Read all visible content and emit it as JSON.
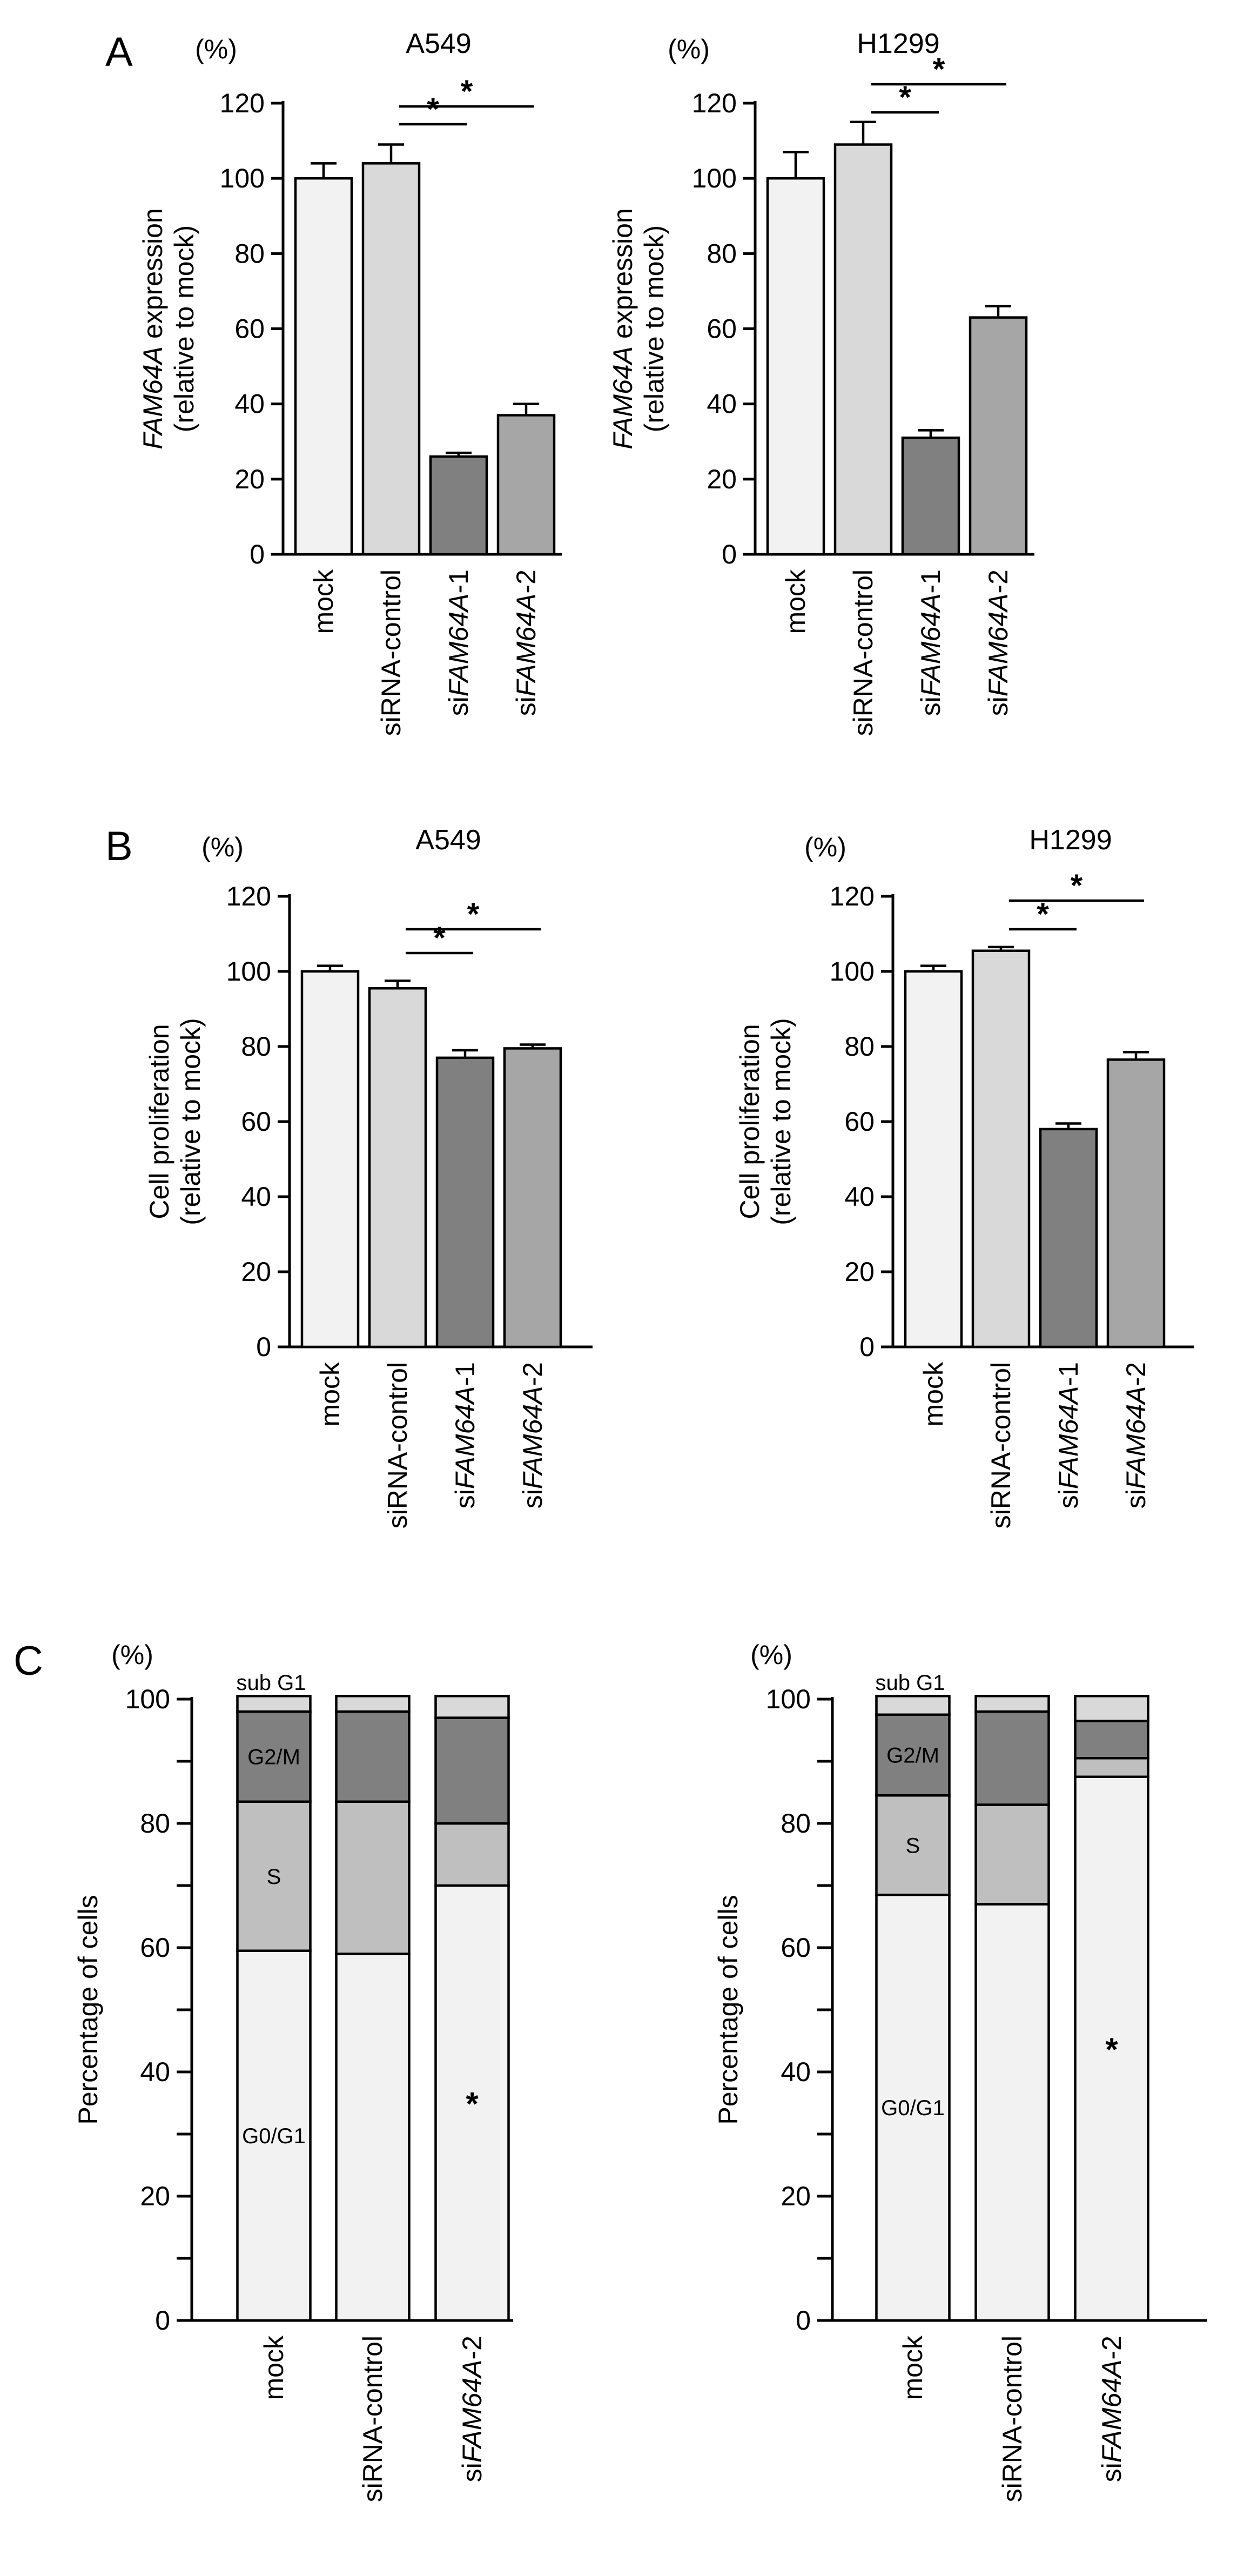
{
  "panel_labels": [
    "A",
    "B",
    "C"
  ],
  "chart_data": [
    {
      "id": "A1",
      "panel": "A",
      "type": "bar",
      "title": "A549",
      "unit": "(%)",
      "ylabel_italic": "FAM64A",
      "ylabel_rest": " expression",
      "ylabel2": "(relative to mock)",
      "ylim": [
        0,
        120
      ],
      "yticks": [
        0,
        20,
        40,
        60,
        80,
        100,
        120
      ],
      "categories": [
        {
          "pre": "",
          "ital": "",
          "post": "mock"
        },
        {
          "pre": "",
          "ital": "",
          "post": "siRNA-control"
        },
        {
          "pre": "si",
          "ital": "FAM64A",
          "post": "-1"
        },
        {
          "pre": "si",
          "ital": "FAM64A",
          "post": "-2"
        }
      ],
      "values": [
        100,
        104,
        26,
        37
      ],
      "errors": [
        4,
        5,
        1,
        3
      ],
      "colors": [
        "#f2f2f2",
        "#d9d9d9",
        "#808080",
        "#a6a6a6"
      ],
      "significance": [
        {
          "from": 1,
          "to": 2,
          "label": "*"
        },
        {
          "from": 1,
          "to": 3,
          "label": "*"
        }
      ]
    },
    {
      "id": "A2",
      "panel": "A",
      "type": "bar",
      "title": "H1299",
      "unit": "(%)",
      "ylabel_italic": "FAM64A",
      "ylabel_rest": " expression",
      "ylabel2": "(relative to mock)",
      "ylim": [
        0,
        120
      ],
      "yticks": [
        0,
        20,
        40,
        60,
        80,
        100,
        120
      ],
      "categories": [
        {
          "pre": "",
          "ital": "",
          "post": "mock"
        },
        {
          "pre": "",
          "ital": "",
          "post": "siRNA-control"
        },
        {
          "pre": "si",
          "ital": "FAM64A",
          "post": "-1"
        },
        {
          "pre": "si",
          "ital": "FAM64A",
          "post": "-2"
        }
      ],
      "values": [
        100,
        109,
        31,
        63
      ],
      "errors": [
        7,
        6,
        2,
        3
      ],
      "colors": [
        "#f2f2f2",
        "#d9d9d9",
        "#808080",
        "#a6a6a6"
      ],
      "significance": [
        {
          "from": 1,
          "to": 2,
          "label": "*"
        },
        {
          "from": 1,
          "to": 3,
          "label": "*"
        }
      ]
    },
    {
      "id": "B1",
      "panel": "B",
      "type": "bar",
      "title": "A549",
      "unit": "(%)",
      "ylabel_italic": "",
      "ylabel_rest": "Cell proliferation",
      "ylabel2": "(relative to mock)",
      "ylim": [
        0,
        120
      ],
      "yticks": [
        0,
        20,
        40,
        60,
        80,
        100,
        120
      ],
      "categories": [
        {
          "pre": "",
          "ital": "",
          "post": "mock"
        },
        {
          "pre": "",
          "ital": "",
          "post": "siRNA-control"
        },
        {
          "pre": "si",
          "ital": "FAM64A",
          "post": "-1"
        },
        {
          "pre": "si",
          "ital": "FAM64A",
          "post": "-2"
        }
      ],
      "values": [
        100,
        95.5,
        77,
        79.5
      ],
      "errors": [
        1.5,
        2,
        2,
        1
      ],
      "colors": [
        "#f2f2f2",
        "#d9d9d9",
        "#808080",
        "#a6a6a6"
      ],
      "significance": [
        {
          "from": 1,
          "to": 2,
          "label": "*"
        },
        {
          "from": 1,
          "to": 3,
          "label": "*"
        }
      ]
    },
    {
      "id": "B2",
      "panel": "B",
      "type": "bar",
      "title": "H1299",
      "unit": "(%)",
      "ylabel_italic": "",
      "ylabel_rest": "Cell proliferation",
      "ylabel2": "(relative to mock)",
      "ylim": [
        0,
        120
      ],
      "yticks": [
        0,
        20,
        40,
        60,
        80,
        100,
        120
      ],
      "categories": [
        {
          "pre": "",
          "ital": "",
          "post": "mock"
        },
        {
          "pre": "",
          "ital": "",
          "post": "siRNA-control"
        },
        {
          "pre": "si",
          "ital": "FAM64A",
          "post": "-1"
        },
        {
          "pre": "si",
          "ital": "FAM64A",
          "post": "-2"
        }
      ],
      "values": [
        100,
        105.5,
        58,
        76.5
      ],
      "errors": [
        1.5,
        1,
        1.5,
        2
      ],
      "colors": [
        "#f2f2f2",
        "#d9d9d9",
        "#808080",
        "#a6a6a6"
      ],
      "significance": [
        {
          "from": 1,
          "to": 2,
          "label": "*"
        },
        {
          "from": 1,
          "to": 3,
          "label": "*"
        }
      ]
    },
    {
      "id": "C1",
      "panel": "C",
      "type": "stacked-bar",
      "title": "",
      "unit": "(%)",
      "ylabel": "Percentage of cells",
      "ylim": [
        0,
        100
      ],
      "yticks": [
        0,
        20,
        40,
        60,
        80,
        100
      ],
      "categories": [
        {
          "pre": "",
          "ital": "",
          "post": "mock"
        },
        {
          "pre": "",
          "ital": "",
          "post": "siRNA-control"
        },
        {
          "pre": "si",
          "ital": "FAM64A",
          "post": "-2"
        }
      ],
      "series": [
        {
          "name": "G0/G1",
          "color": "#f2f2f2",
          "values": [
            59.5,
            59,
            70
          ]
        },
        {
          "name": "S",
          "color": "#bfbfbf",
          "values": [
            24,
            24.5,
            10
          ]
        },
        {
          "name": "G2/M",
          "color": "#808080",
          "values": [
            14.5,
            14.5,
            17
          ]
        },
        {
          "name": "sub G1",
          "color": "#d9d9d9",
          "values": [
            2.5,
            2.5,
            3.5
          ]
        }
      ],
      "segment_labels_on_bar": 0,
      "significant_bar": 2,
      "significance_label": "*"
    },
    {
      "id": "C2",
      "panel": "C",
      "type": "stacked-bar",
      "title": "",
      "unit": "(%)",
      "ylabel": "Percentage of cells",
      "ylim": [
        0,
        100
      ],
      "yticks": [
        0,
        20,
        40,
        60,
        80,
        100
      ],
      "categories": [
        {
          "pre": "",
          "ital": "",
          "post": "mock"
        },
        {
          "pre": "",
          "ital": "",
          "post": "siRNA-control"
        },
        {
          "pre": "si",
          "ital": "FAM64A",
          "post": "-2"
        }
      ],
      "series": [
        {
          "name": "G0/G1",
          "color": "#f2f2f2",
          "values": [
            68.5,
            67,
            87.5
          ]
        },
        {
          "name": "S",
          "color": "#bfbfbf",
          "values": [
            16,
            16,
            3
          ]
        },
        {
          "name": "G2/M",
          "color": "#808080",
          "values": [
            13,
            15,
            6
          ]
        },
        {
          "name": "sub G1",
          "color": "#d9d9d9",
          "values": [
            3,
            2.5,
            4
          ]
        }
      ],
      "segment_labels_on_bar": 0,
      "significant_bar": 2,
      "significance_label": "*"
    }
  ]
}
